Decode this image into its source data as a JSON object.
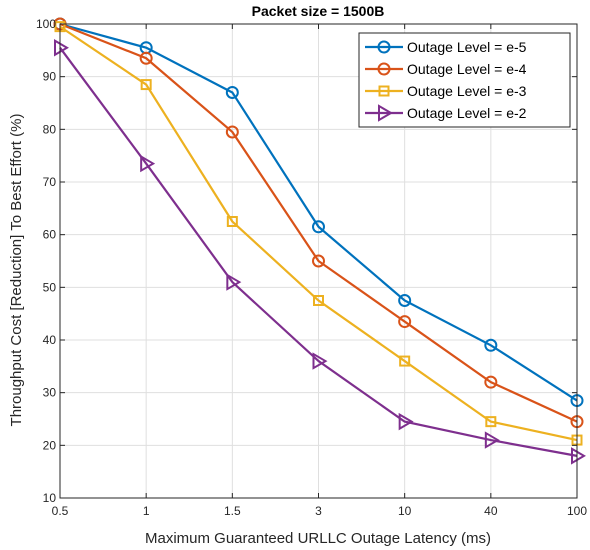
{
  "chart_data": {
    "type": "line",
    "title": "Packet size = 1500B",
    "xlabel": "Maximum Guaranteed URLLC Outage Latency (ms)",
    "ylabel": "Throughput Cost [Reduction] To Best Effort (%)",
    "categories": [
      "0.5",
      "1",
      "1.5",
      "3",
      "10",
      "40",
      "100"
    ],
    "ylim": [
      10,
      100
    ],
    "yticks": [
      10,
      20,
      30,
      40,
      50,
      60,
      70,
      80,
      90,
      100
    ],
    "grid": true,
    "legend_position": "top-right",
    "series": [
      {
        "name": "Outage Level = e-5",
        "marker": "circle",
        "color": "#0072BD",
        "values": [
          100,
          95.5,
          87,
          61.5,
          47.5,
          39,
          28.5
        ]
      },
      {
        "name": "Outage Level = e-4",
        "marker": "circle",
        "color": "#D95319",
        "values": [
          100,
          93.5,
          79.5,
          55,
          43.5,
          32,
          24.5
        ]
      },
      {
        "name": "Outage Level = e-3",
        "marker": "square",
        "color": "#EDB120",
        "values": [
          99.5,
          88.5,
          62.5,
          47.5,
          36,
          24.5,
          21
        ]
      },
      {
        "name": "Outage Level = e-2",
        "marker": "triangle-right",
        "color": "#7E2F8E",
        "values": [
          95.5,
          73.5,
          51,
          36,
          24.5,
          21,
          18
        ]
      }
    ]
  }
}
